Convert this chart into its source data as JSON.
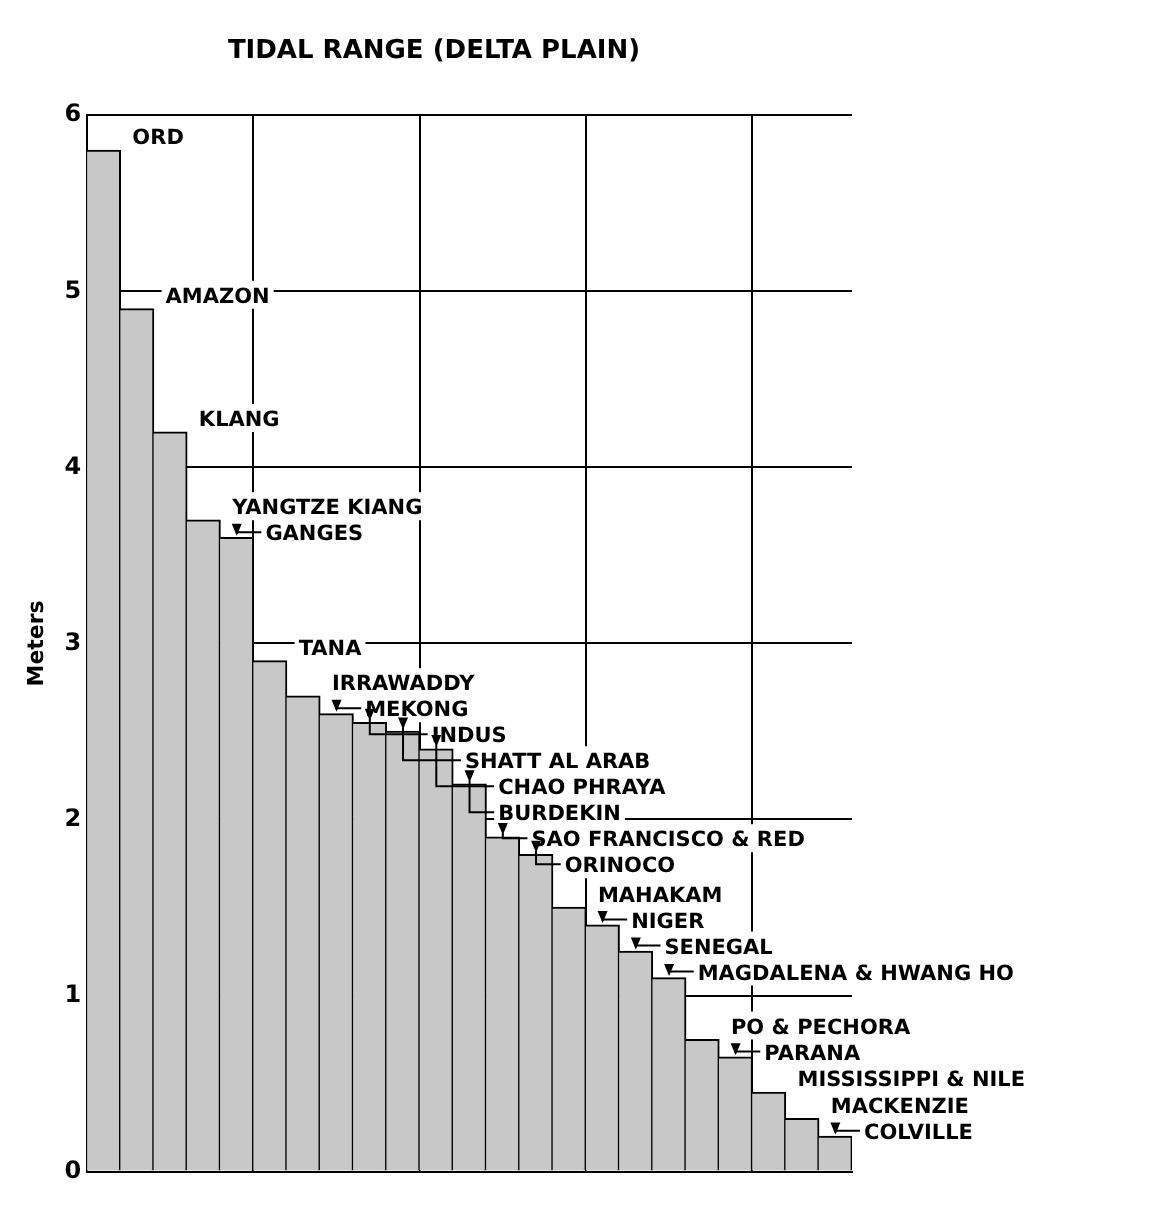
{
  "chart_data": {
    "type": "bar",
    "title": "TIDAL RANGE (DELTA PLAIN)",
    "ylabel": "Meters",
    "categories": [
      null,
      null,
      null,
      null,
      null,
      null,
      null,
      null,
      null,
      null,
      null,
      null,
      null,
      null,
      null,
      null,
      null,
      null,
      null,
      null,
      null,
      null,
      null
    ],
    "values": [
      5.8,
      4.9,
      4.2,
      3.7,
      3.6,
      2.9,
      2.7,
      2.6,
      2.55,
      2.5,
      2.4,
      2.2,
      1.9,
      1.8,
      1.5,
      1.4,
      1.25,
      1.1,
      0.75,
      0.65,
      0.45,
      0.3,
      0.2
    ],
    "color": "#c8c8c8",
    "ylim": [
      0,
      6
    ],
    "yticks": [
      0,
      1,
      2,
      3,
      4,
      5,
      6
    ],
    "grid": true,
    "tick_labels": "y",
    "annotations": [
      "ORD",
      "AMAZON",
      "KLANG",
      "YANGTZE KIANG",
      "GANGES",
      "TANA",
      "IRRAWADDY",
      "MEKONG",
      "INDUS",
      "SHATT AL ARAB",
      "CHAO PHRAYA",
      "BURDEKIN",
      "SAO FRANCISCO & RED",
      "ORINOCO",
      "MAHAKAM",
      "NIGER",
      "SENEGAL",
      "MAGDALENA & HWANG HO",
      "PO & PECHORA",
      "PARANA",
      "MISSISSIPPI & NILE",
      "MACKENZIE",
      "COLVILLE"
    ]
  }
}
